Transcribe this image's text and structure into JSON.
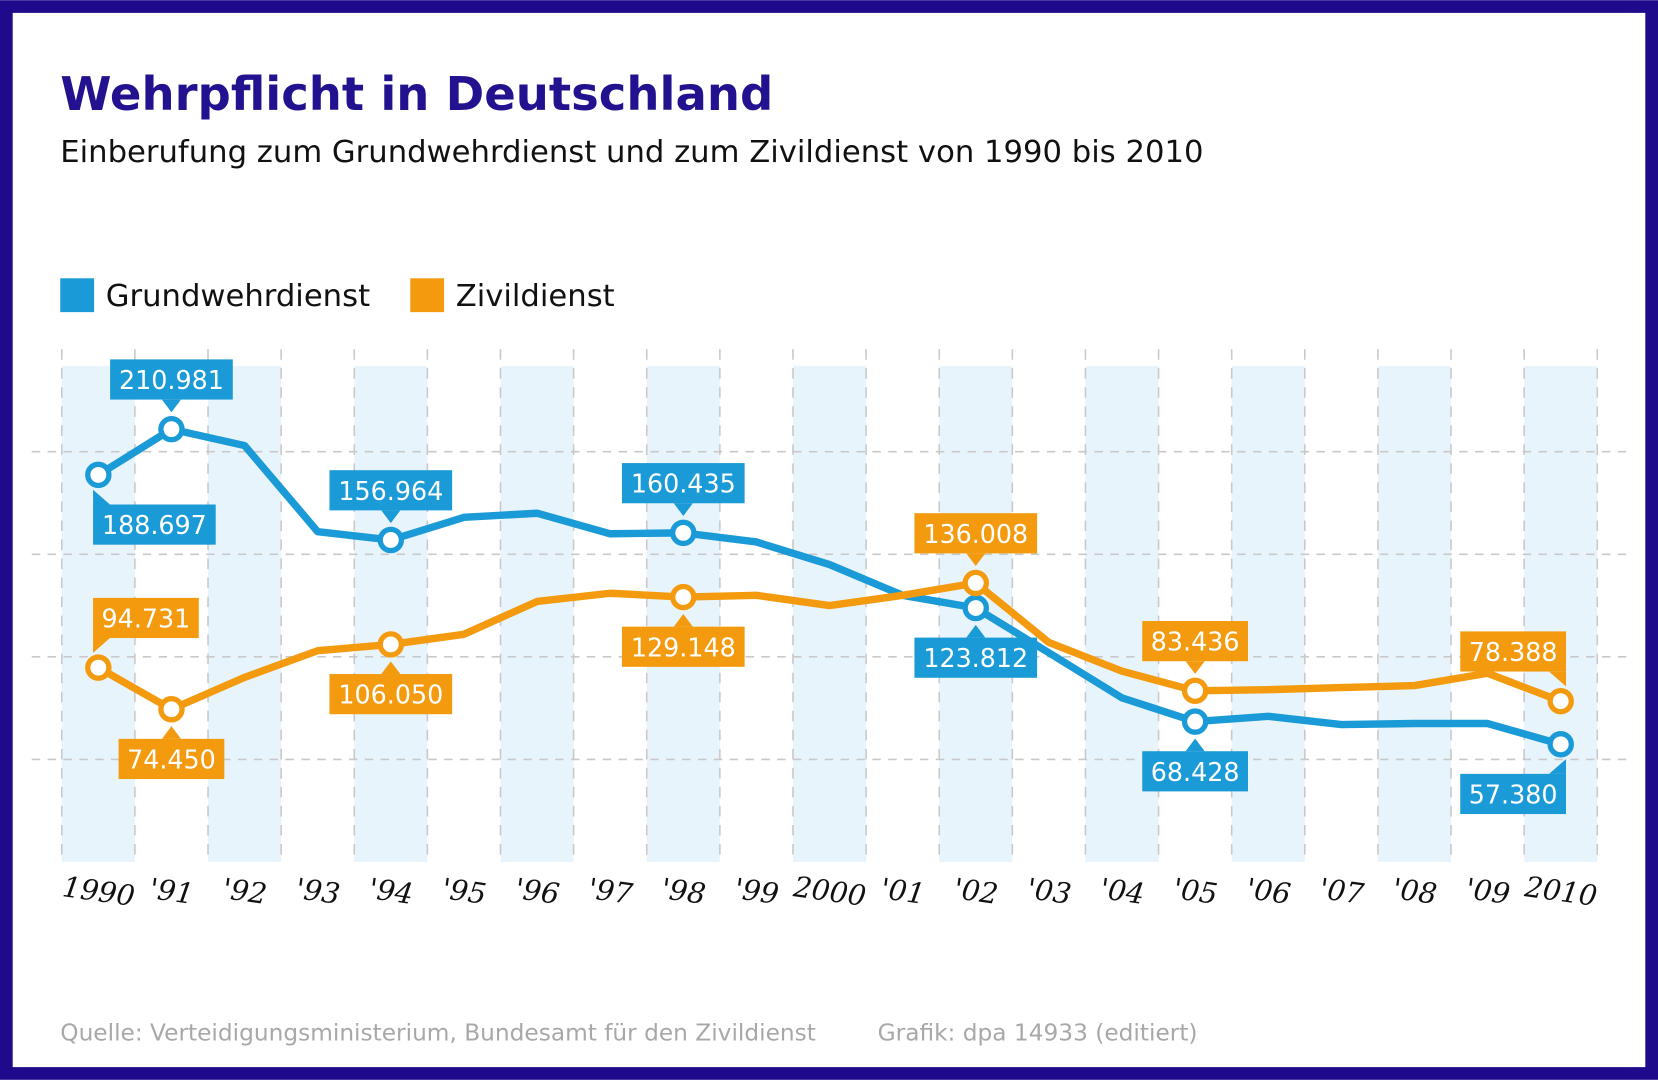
{
  "colors": {
    "frame": "#1f0a8c",
    "title": "#22128f",
    "grundwehrdienst": "#1a9ad6",
    "zivildienst": "#f39a0e",
    "band": "#e8f4fc",
    "grid": "#c9c9c9"
  },
  "chart_data": {
    "type": "line",
    "title": "Wehrpflicht in Deutschland",
    "subtitle": "Einberufung zum Grundwehrdienst und zum Zivildienst von 1990 bis 2010",
    "x": [
      1990,
      1991,
      1992,
      1993,
      1994,
      1995,
      1996,
      1997,
      1998,
      1999,
      2000,
      2001,
      2002,
      2003,
      2004,
      2005,
      2006,
      2007,
      2008,
      2009,
      2010
    ],
    "tick_labels": [
      "1990",
      "'91",
      "'92",
      "'93",
      "'94",
      "'95",
      "'96",
      "'97",
      "'98",
      "'99",
      "2000",
      "'01",
      "'02",
      "'03",
      "'04",
      "'05",
      "'06",
      "'07",
      "'08",
      "'09",
      "2010"
    ],
    "ylim": [
      0,
      250
    ],
    "y_gridlines": [
      50,
      100,
      150,
      200
    ],
    "y_unit": "thousand",
    "grid": true,
    "legend_position": "top-left",
    "series": [
      {
        "name": "Grundwehrdienst",
        "color": "#1a9ad6",
        "values": [
          188.697,
          210.981,
          203,
          161,
          156.964,
          168,
          170,
          160,
          160.435,
          156,
          145,
          130,
          123.812,
          102,
          80,
          68.428,
          71,
          67,
          67.5,
          67.5,
          57.38
        ],
        "labels": [
          {
            "year": 1990,
            "text": "188.697",
            "place": "below",
            "align": "left"
          },
          {
            "year": 1991,
            "text": "210.981",
            "place": "above",
            "align": "center"
          },
          {
            "year": 1994,
            "text": "156.964",
            "place": "above",
            "align": "center"
          },
          {
            "year": 1998,
            "text": "160.435",
            "place": "above",
            "align": "center"
          },
          {
            "year": 2002,
            "text": "123.812",
            "place": "below",
            "align": "center"
          },
          {
            "year": 2005,
            "text": "68.428",
            "place": "below",
            "align": "center"
          },
          {
            "year": 2010,
            "text": "57.380",
            "place": "below",
            "align": "right"
          }
        ]
      },
      {
        "name": "Zivildienst",
        "color": "#f39a0e",
        "values": [
          94.731,
          74.45,
          90,
          103,
          106.05,
          111,
          127,
          131,
          129.148,
          130,
          125,
          130,
          136.008,
          107,
          93,
          83.436,
          84,
          85,
          86,
          92,
          78.388
        ],
        "labels": [
          {
            "year": 1990,
            "text": "94.731",
            "place": "above",
            "align": "left"
          },
          {
            "year": 1991,
            "text": "74.450",
            "place": "below",
            "align": "center"
          },
          {
            "year": 1994,
            "text": "106.050",
            "place": "below",
            "align": "center"
          },
          {
            "year": 1998,
            "text": "129.148",
            "place": "below",
            "align": "center"
          },
          {
            "year": 2002,
            "text": "136.008",
            "place": "above",
            "align": "center"
          },
          {
            "year": 2005,
            "text": "83.436",
            "place": "above",
            "align": "center"
          },
          {
            "year": 2010,
            "text": "78.388",
            "place": "above",
            "align": "right"
          }
        ]
      }
    ]
  },
  "footer": {
    "source": "Quelle: Verteidigungsministerium, Bundesamt für den Zivildienst",
    "credit": "Grafik: dpa 14933 (editiert)"
  }
}
